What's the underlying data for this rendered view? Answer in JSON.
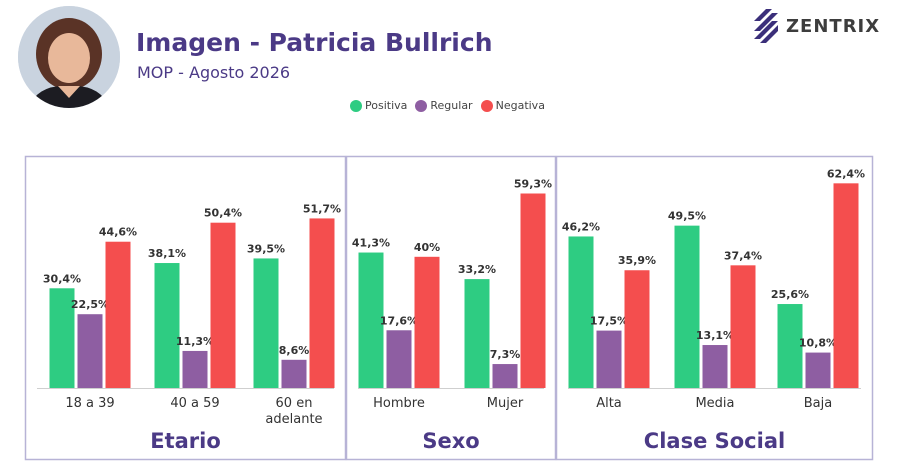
{
  "header": {
    "title": "Imagen - Patricia Bullrich",
    "subtitle": "MOP - Agosto 2026",
    "logo_text": "ZENTRIX"
  },
  "legend": [
    {
      "label": "Positiva",
      "color": "#2ecc82"
    },
    {
      "label": "Regular",
      "color": "#8e5ea2"
    },
    {
      "label": "Negativa",
      "color": "#f44e4e"
    }
  ],
  "chart_data": {
    "type": "bar",
    "series_names": [
      "Positiva",
      "Regular",
      "Negativa"
    ],
    "colors": [
      "#2ecc82",
      "#8e5ea2",
      "#f44e4e"
    ],
    "ylim": [
      0,
      70
    ],
    "groups": [
      {
        "title": "Etario",
        "categories": [
          {
            "label": [
              "18 a 39"
            ],
            "values": [
              30.4,
              22.5,
              44.6
            ],
            "labels": [
              "30,4%",
              "22,5%",
              "44,6%"
            ]
          },
          {
            "label": [
              "40 a 59"
            ],
            "values": [
              38.1,
              11.3,
              50.4
            ],
            "labels": [
              "38,1%",
              "11,3%",
              "50,4%"
            ]
          },
          {
            "label": [
              "60 en",
              "adelante"
            ],
            "values": [
              39.5,
              8.6,
              51.7
            ],
            "labels": [
              "39,5%",
              "8,6%",
              "51,7%"
            ]
          }
        ]
      },
      {
        "title": "Sexo",
        "categories": [
          {
            "label": [
              "Hombre"
            ],
            "values": [
              41.3,
              17.6,
              40
            ],
            "labels": [
              "41,3%",
              "17,6%",
              "40%"
            ]
          },
          {
            "label": [
              "Mujer"
            ],
            "values": [
              33.2,
              7.3,
              59.3
            ],
            "labels": [
              "33,2%",
              "7,3%",
              "59,3%"
            ]
          }
        ]
      },
      {
        "title": "Clase Social",
        "categories": [
          {
            "label": [
              "Alta"
            ],
            "values": [
              46.2,
              17.5,
              35.9
            ],
            "labels": [
              "46,2%",
              "17,5%",
              "35,9%"
            ]
          },
          {
            "label": [
              "Media"
            ],
            "values": [
              49.5,
              13.1,
              37.4
            ],
            "labels": [
              "49,5%",
              "13,1%",
              "37,4%"
            ]
          },
          {
            "label": [
              "Baja"
            ],
            "values": [
              25.6,
              10.8,
              62.4
            ],
            "labels": [
              "25,6%",
              "10,8%",
              "62,4%"
            ]
          }
        ]
      }
    ]
  }
}
